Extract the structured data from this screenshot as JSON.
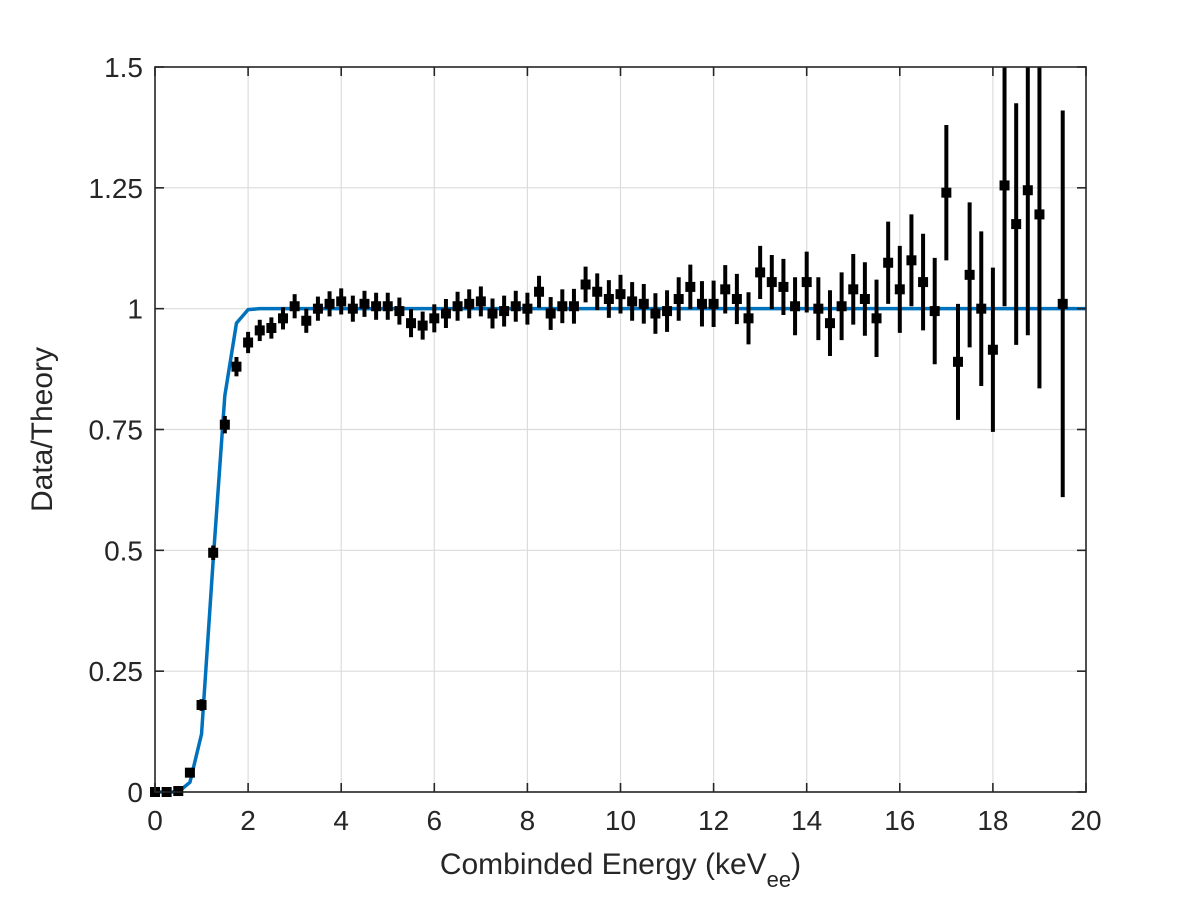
{
  "chart_data": {
    "type": "scatter",
    "title": "",
    "xlabel": "Combinded Energy (keV",
    "xlabel_sub": "ee",
    "xlabel_close": ")",
    "ylabel": "Data/Theory",
    "xlim": [
      0,
      20
    ],
    "ylim": [
      0,
      1.5
    ],
    "x_ticks": [
      0,
      2,
      4,
      6,
      8,
      10,
      12,
      14,
      16,
      18,
      20
    ],
    "x_tick_labels": [
      "0",
      "2",
      "4",
      "6",
      "8",
      "10",
      "12",
      "14",
      "16",
      "18",
      "20"
    ],
    "y_ticks": [
      0,
      0.25,
      0.5,
      0.75,
      1,
      1.25,
      1.5
    ],
    "y_tick_labels": [
      "0",
      "0.25",
      "0.5",
      "0.75",
      "1",
      "1.25",
      "1.5"
    ],
    "grid": true,
    "colors": {
      "data": "#000000",
      "fit": "#0072bd",
      "grid": "#dcdcdc",
      "axis": "#262626"
    },
    "series": [
      {
        "type": "errorbar",
        "x": [
          0.0,
          0.25,
          0.5,
          0.75,
          1.0,
          1.25,
          1.5,
          1.75,
          2.0,
          2.25,
          2.5,
          2.75,
          3.0,
          3.25,
          3.5,
          3.75,
          4.0,
          4.25,
          4.5,
          4.75,
          5.0,
          5.25,
          5.5,
          5.75,
          6.0,
          6.25,
          6.5,
          6.75,
          7.0,
          7.25,
          7.5,
          7.75,
          8.0,
          8.25,
          8.5,
          8.75,
          9.0,
          9.25,
          9.5,
          9.75,
          10.0,
          10.25,
          10.5,
          10.75,
          11.0,
          11.25,
          11.5,
          11.75,
          12.0,
          12.25,
          12.5,
          12.75,
          13.0,
          13.25,
          13.5,
          13.75,
          14.0,
          14.25,
          14.5,
          14.75,
          15.0,
          15.25,
          15.5,
          15.75,
          16.0,
          16.25,
          16.5,
          16.75,
          17.0,
          17.25,
          17.5,
          17.75,
          18.0,
          18.25,
          18.5,
          18.75,
          19.0,
          19.5
        ],
        "y": [
          0.0,
          0.0,
          0.002,
          0.04,
          0.18,
          0.495,
          0.76,
          0.88,
          0.93,
          0.955,
          0.96,
          0.98,
          1.005,
          0.975,
          1.0,
          1.01,
          1.015,
          1.0,
          1.01,
          1.005,
          1.005,
          0.995,
          0.97,
          0.965,
          0.98,
          0.99,
          1.005,
          1.01,
          1.015,
          0.99,
          0.995,
          1.005,
          1.0,
          1.035,
          0.99,
          1.005,
          1.005,
          1.05,
          1.035,
          1.02,
          1.03,
          1.015,
          1.01,
          0.99,
          0.995,
          1.02,
          1.045,
          1.01,
          1.01,
          1.04,
          1.02,
          0.98,
          1.075,
          1.055,
          1.045,
          1.005,
          1.055,
          1.0,
          0.97,
          1.005,
          1.04,
          1.02,
          0.98,
          1.095,
          1.04,
          1.1,
          1.055,
          0.995,
          1.24,
          0.89,
          1.07,
          1.0,
          0.915,
          1.255,
          1.175,
          1.245,
          1.195,
          1.01
        ],
        "err": [
          0.003,
          0.003,
          0.004,
          0.008,
          0.012,
          0.015,
          0.018,
          0.02,
          0.022,
          0.022,
          0.022,
          0.023,
          0.025,
          0.025,
          0.025,
          0.026,
          0.027,
          0.027,
          0.027,
          0.028,
          0.028,
          0.028,
          0.029,
          0.029,
          0.029,
          0.03,
          0.03,
          0.03,
          0.031,
          0.031,
          0.032,
          0.032,
          0.033,
          0.033,
          0.034,
          0.035,
          0.036,
          0.037,
          0.038,
          0.039,
          0.04,
          0.04,
          0.041,
          0.042,
          0.043,
          0.045,
          0.046,
          0.047,
          0.048,
          0.05,
          0.052,
          0.054,
          0.055,
          0.056,
          0.058,
          0.06,
          0.063,
          0.065,
          0.068,
          0.07,
          0.073,
          0.076,
          0.08,
          0.085,
          0.09,
          0.095,
          0.1,
          0.11,
          0.14,
          0.12,
          0.15,
          0.16,
          0.17,
          0.25,
          0.25,
          0.3,
          0.36,
          0.4
        ]
      },
      {
        "type": "line",
        "x": [
          0.0,
          0.5,
          0.75,
          1.0,
          1.25,
          1.5,
          1.75,
          2.0,
          2.25,
          20.0
        ],
        "y": [
          0.0,
          0.0,
          0.02,
          0.12,
          0.48,
          0.82,
          0.97,
          0.998,
          1.0,
          1.0
        ]
      }
    ]
  }
}
